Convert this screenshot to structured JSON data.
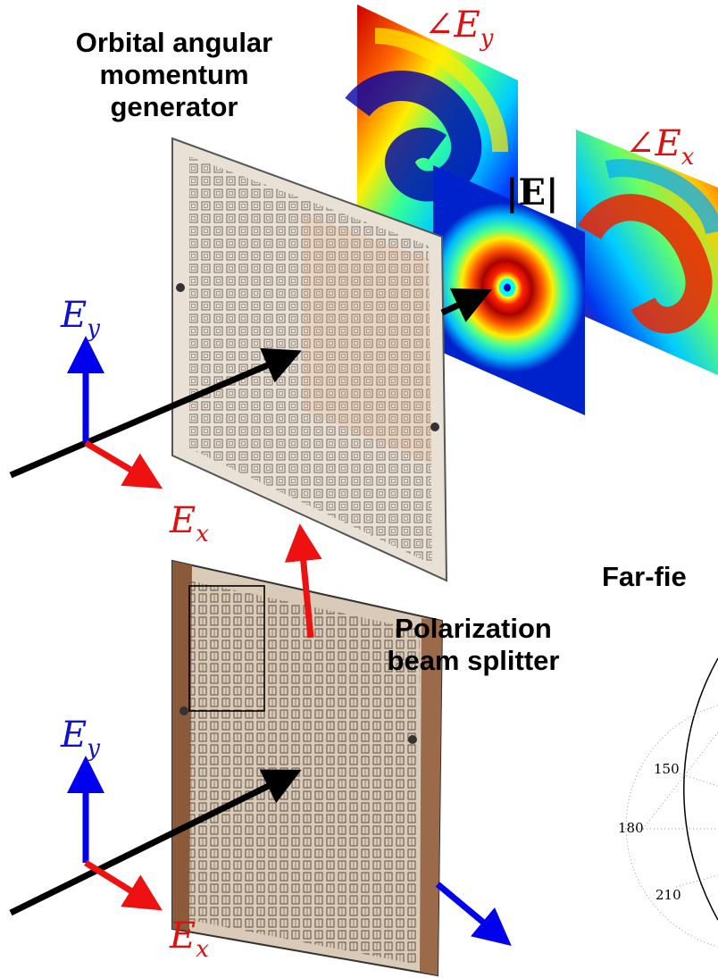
{
  "labels": {
    "oam_title": [
      "Orbital angular",
      "momentum",
      "generator"
    ],
    "pbs_title": [
      "Polarization",
      "beam splitter"
    ],
    "farfield_title": "Far-fie"
  },
  "math": {
    "ey": {
      "base": "E",
      "sub": "y"
    },
    "ex": {
      "base": "E",
      "sub": "x"
    },
    "angle_ey": {
      "sym": "∠",
      "base": "E",
      "sub": "y"
    },
    "angle_ex": {
      "sym": "∠",
      "base": "E",
      "sub": "x"
    },
    "abs_e": "|E|"
  },
  "polar_ticks": [
    "150",
    "180",
    "210"
  ],
  "colors": {
    "ey_axis": "#0000ee",
    "ex_axis": "#ee1111",
    "beam": "#000000",
    "angle_text": "#dd1111",
    "ey_text": "#1111cc"
  }
}
